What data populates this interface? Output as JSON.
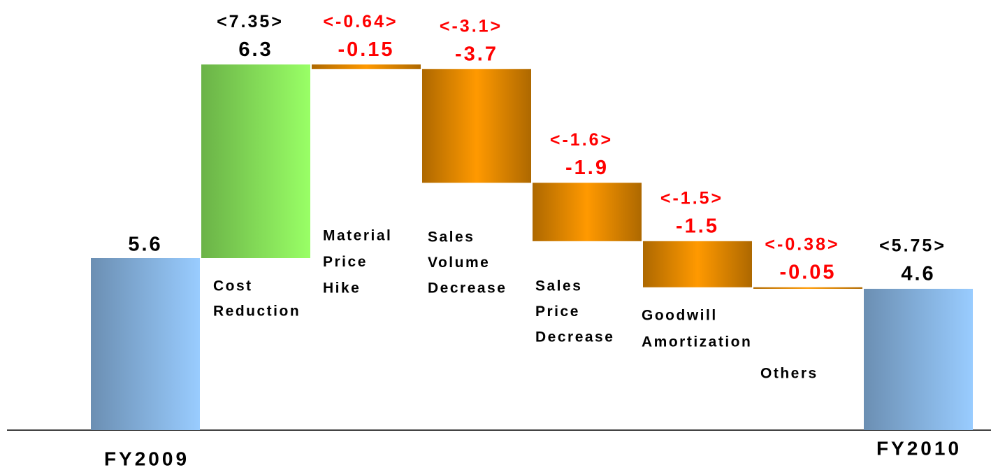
{
  "chart_data": {
    "type": "waterfall",
    "categories": [
      [
        "FY2009"
      ],
      [
        "Cost",
        "Reduction"
      ],
      [
        "Material",
        "Price",
        "Hike"
      ],
      [
        "Sales",
        "Volume",
        "Decrease"
      ],
      [
        "Sales",
        "Price",
        "Decrease"
      ],
      [
        "Goodwill",
        "Amortization"
      ],
      [
        "Others"
      ],
      [
        "FY2010"
      ]
    ],
    "measure": [
      "absolute",
      "relative",
      "relative",
      "relative",
      "relative",
      "relative",
      "relative",
      "total"
    ],
    "values": [
      5.6,
      6.3,
      -0.15,
      -3.7,
      -1.9,
      -1.5,
      -0.05,
      4.6
    ],
    "bracket_values": [
      null,
      7.35,
      -0.64,
      -3.1,
      -1.6,
      -1.5,
      -0.38,
      5.75
    ],
    "bracket_value_labels": [
      null,
      "<7.35>",
      "<-0.64>",
      "<-3.1>",
      "<-1.6>",
      "<-1.5>",
      "<-0.38>",
      "<5.75>"
    ],
    "total_color": "#99ccff",
    "increase_color": "#99ff66",
    "decrease_color": "#ff9900",
    "label_color_positive": "#000000",
    "label_color_negative": "#ff0000",
    "ylim": [
      0,
      14
    ]
  }
}
